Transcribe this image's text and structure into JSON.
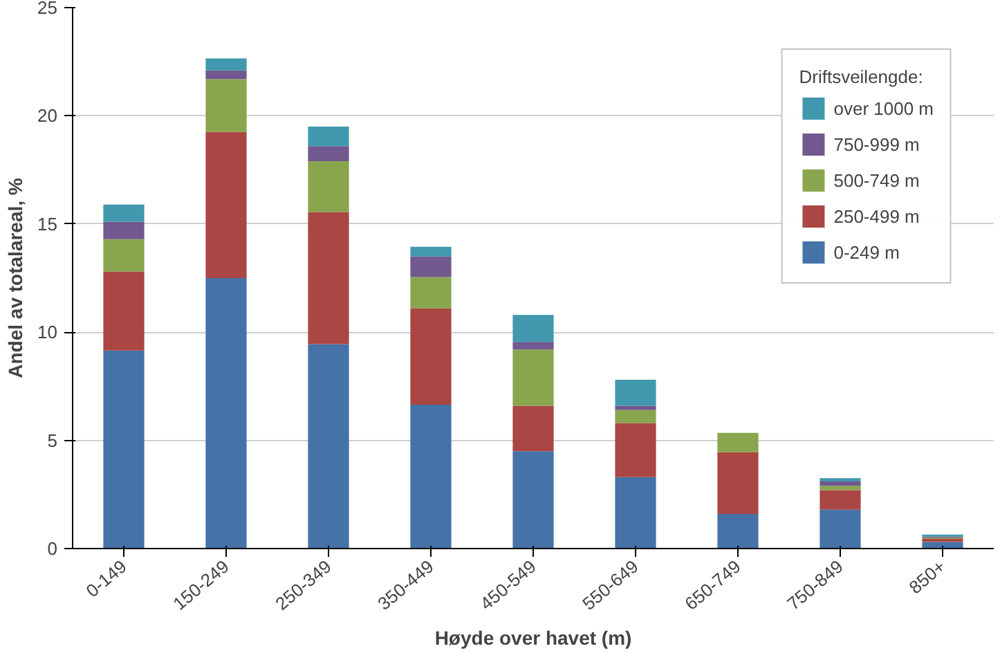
{
  "chart_data": {
    "type": "bar",
    "stacked": true,
    "xlabel": "Høyde over havet (m)",
    "ylabel": "Andel av totalareal, %",
    "legend_title": "Driftsveilengde:",
    "categories": [
      "0-149",
      "150-249",
      "250-349",
      "350-449",
      "450-549",
      "550-649",
      "650-749",
      "750-849",
      "850+"
    ],
    "series": [
      {
        "name": "0-249 m",
        "color": "#4572a7",
        "values": [
          9.15,
          12.5,
          9.45,
          6.65,
          4.5,
          3.3,
          1.6,
          1.8,
          0.3
        ]
      },
      {
        "name": "250-499 m",
        "color": "#aa4643",
        "values": [
          3.65,
          6.75,
          6.1,
          4.45,
          2.1,
          2.5,
          2.85,
          0.9,
          0.15
        ]
      },
      {
        "name": "500-749 m",
        "color": "#89a54e",
        "values": [
          1.5,
          2.45,
          2.35,
          1.45,
          2.6,
          0.6,
          0.9,
          0.2,
          0.05
        ]
      },
      {
        "name": "750-999 m",
        "color": "#71588f",
        "values": [
          0.8,
          0.4,
          0.7,
          0.95,
          0.35,
          0.2,
          0,
          0.2,
          0.05
        ]
      },
      {
        "name": "over 1000 m",
        "color": "#4198af",
        "values": [
          0.8,
          0.55,
          0.9,
          0.45,
          1.25,
          1.2,
          0,
          0.15,
          0.1
        ]
      }
    ],
    "ylim": [
      0,
      25
    ],
    "yticks": [
      0,
      5,
      10,
      15,
      20,
      25
    ],
    "grid": "y",
    "legend": "top right"
  }
}
